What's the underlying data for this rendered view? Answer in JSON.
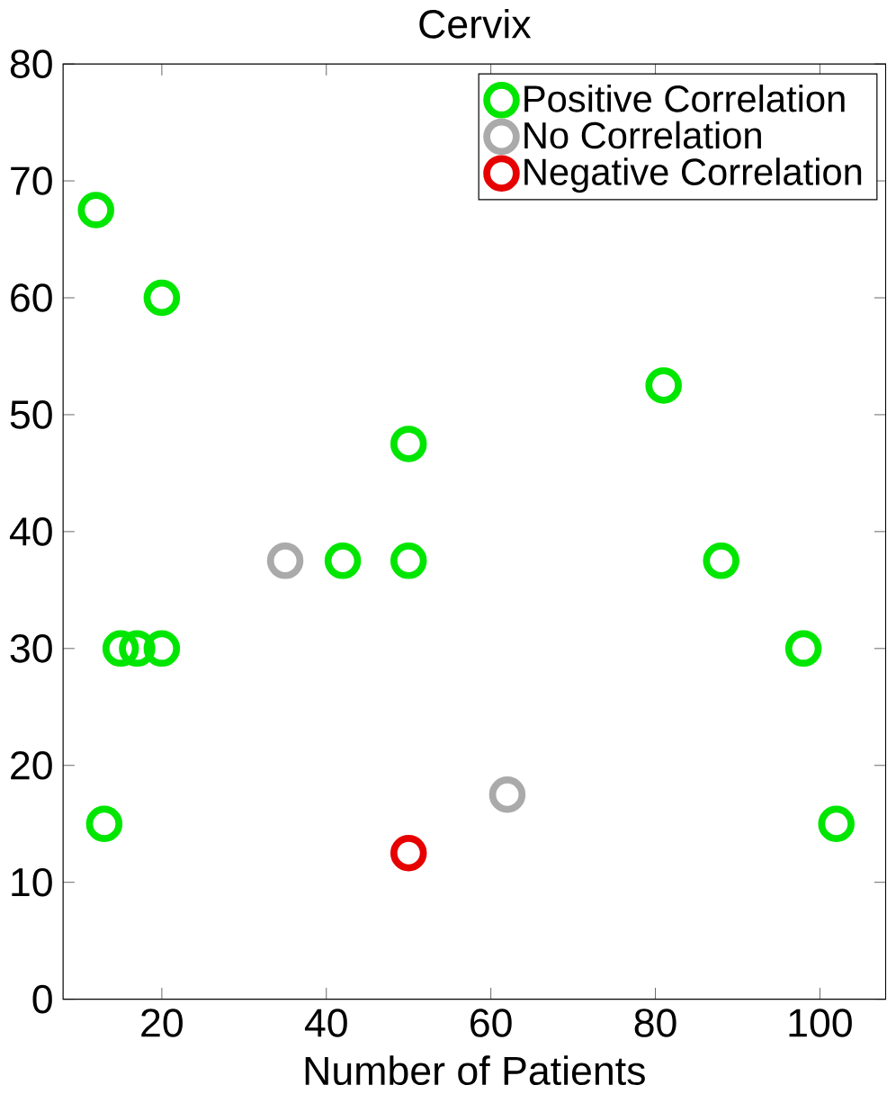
{
  "chart_data": {
    "type": "scatter",
    "title": "Cervix",
    "xlabel": "Number of Patients",
    "xlim": [
      8,
      108
    ],
    "ylim": [
      0,
      80
    ],
    "xticks": [
      20,
      40,
      60,
      80,
      100
    ],
    "yticks": [
      0,
      10,
      20,
      30,
      40,
      50,
      60,
      70,
      80
    ],
    "grid": false,
    "legend": "top right",
    "marker": "circle",
    "series": [
      {
        "name": "Positive Correlation",
        "color": "#00e600",
        "x": [
          12,
          20,
          50,
          81,
          42,
          50,
          88,
          15,
          17,
          20,
          98,
          13,
          102
        ],
        "values": [
          67.5,
          60,
          47.5,
          52.5,
          37.5,
          37.5,
          37.5,
          30,
          30,
          30,
          30,
          15,
          15
        ]
      },
      {
        "name": "No Correlation",
        "color": "#aaaaaa",
        "x": [
          35,
          62
        ],
        "values": [
          37.5,
          17.5
        ]
      },
      {
        "name": "Negative Correlation",
        "color": "#e60000",
        "x": [
          50
        ],
        "values": [
          12.5
        ]
      }
    ]
  }
}
